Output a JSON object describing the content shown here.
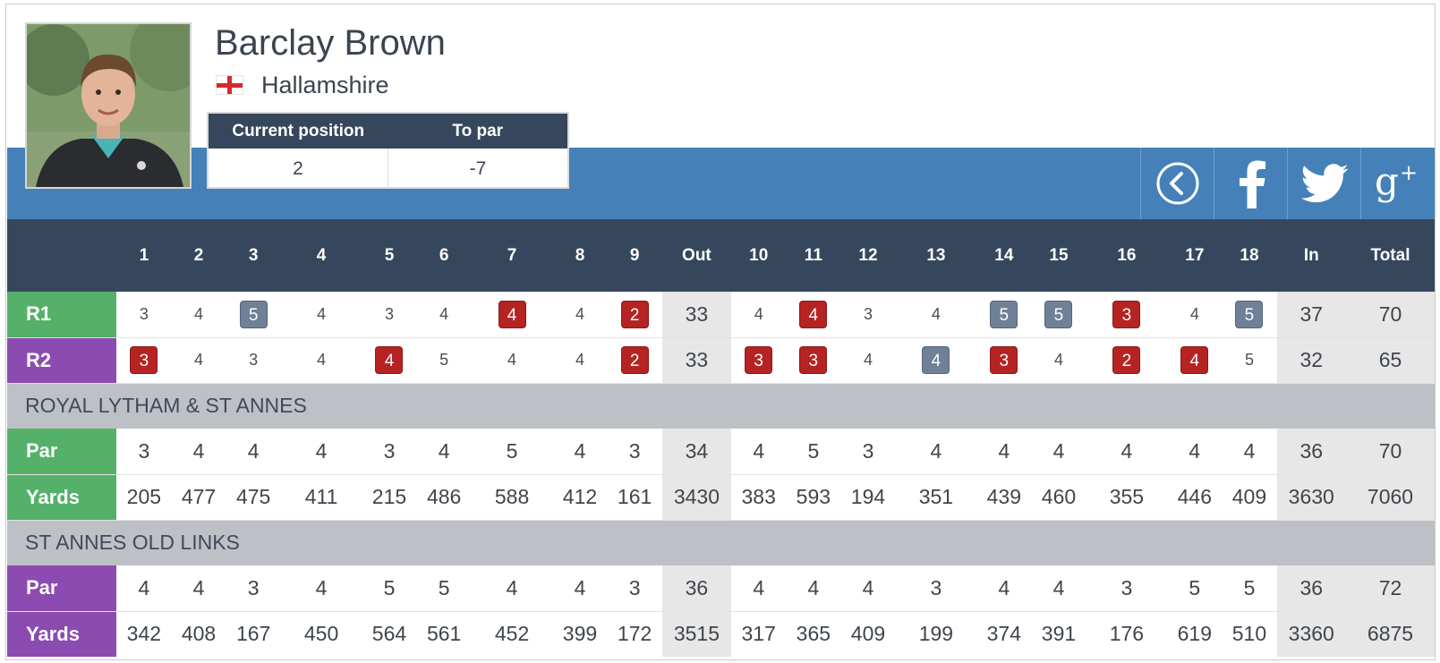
{
  "player": {
    "name": "Barclay Brown",
    "club": "Hallamshire",
    "flag": "england-flag-icon",
    "position_label": "Current position",
    "to_par_label": "To par",
    "position": "2",
    "to_par": "-7"
  },
  "share_icons": [
    "back-arrow-icon",
    "facebook-icon",
    "twitter-icon",
    "google-plus-icon"
  ],
  "columns": [
    "",
    "1",
    "2",
    "3",
    "4",
    "5",
    "6",
    "7",
    "8",
    "9",
    "Out",
    "10",
    "11",
    "12",
    "13",
    "14",
    "15",
    "16",
    "17",
    "18",
    "In",
    "Total"
  ],
  "rounds": [
    {
      "label": "R1",
      "color": "#55b16a",
      "holes": [
        "3",
        "4",
        "5",
        "4",
        "3",
        "4",
        "4",
        "4",
        "2",
        "4",
        "4",
        "3",
        "4",
        "5",
        "5",
        "3",
        "4",
        "5"
      ],
      "styles": [
        "",
        "",
        "grey",
        "",
        "",
        "",
        "red",
        "",
        "red",
        "",
        "red",
        "",
        "",
        "grey",
        "grey",
        "red",
        "",
        "grey"
      ],
      "out": "33",
      "in": "37",
      "total": "70"
    },
    {
      "label": "R2",
      "color": "#8c4bb1",
      "holes": [
        "3",
        "4",
        "3",
        "4",
        "4",
        "5",
        "4",
        "4",
        "2",
        "3",
        "3",
        "4",
        "4",
        "3",
        "4",
        "2",
        "4",
        "5"
      ],
      "styles": [
        "red",
        "",
        "",
        "",
        "red",
        "",
        "",
        "",
        "red",
        "red",
        "red",
        "",
        "grey",
        "red",
        "",
        "red",
        "red",
        ""
      ],
      "out": "33",
      "in": "32",
      "total": "65"
    }
  ],
  "courses": [
    {
      "name": "ROYAL LYTHAM & ST ANNES",
      "color": "#55b16a",
      "par": {
        "label": "Par",
        "holes": [
          "3",
          "4",
          "4",
          "4",
          "3",
          "4",
          "5",
          "4",
          "3",
          "4",
          "5",
          "3",
          "4",
          "4",
          "4",
          "4",
          "4",
          "4"
        ],
        "out": "34",
        "in": "36",
        "total": "70"
      },
      "yards": {
        "label": "Yards",
        "holes": [
          "205",
          "477",
          "475",
          "411",
          "215",
          "486",
          "588",
          "412",
          "161",
          "383",
          "593",
          "194",
          "351",
          "439",
          "460",
          "355",
          "446",
          "409"
        ],
        "out": "3430",
        "in": "3630",
        "total": "7060"
      }
    },
    {
      "name": "ST ANNES OLD LINKS",
      "color": "#8c4bb1",
      "par": {
        "label": "Par",
        "holes": [
          "4",
          "4",
          "3",
          "4",
          "5",
          "5",
          "4",
          "4",
          "3",
          "4",
          "4",
          "4",
          "3",
          "4",
          "4",
          "3",
          "5",
          "5"
        ],
        "out": "36",
        "in": "36",
        "total": "72"
      },
      "yards": {
        "label": "Yards",
        "holes": [
          "342",
          "408",
          "167",
          "450",
          "564",
          "561",
          "452",
          "399",
          "172",
          "317",
          "365",
          "409",
          "199",
          "374",
          "391",
          "176",
          "619",
          "510"
        ],
        "out": "3515",
        "in": "3360",
        "total": "6875"
      }
    }
  ]
}
